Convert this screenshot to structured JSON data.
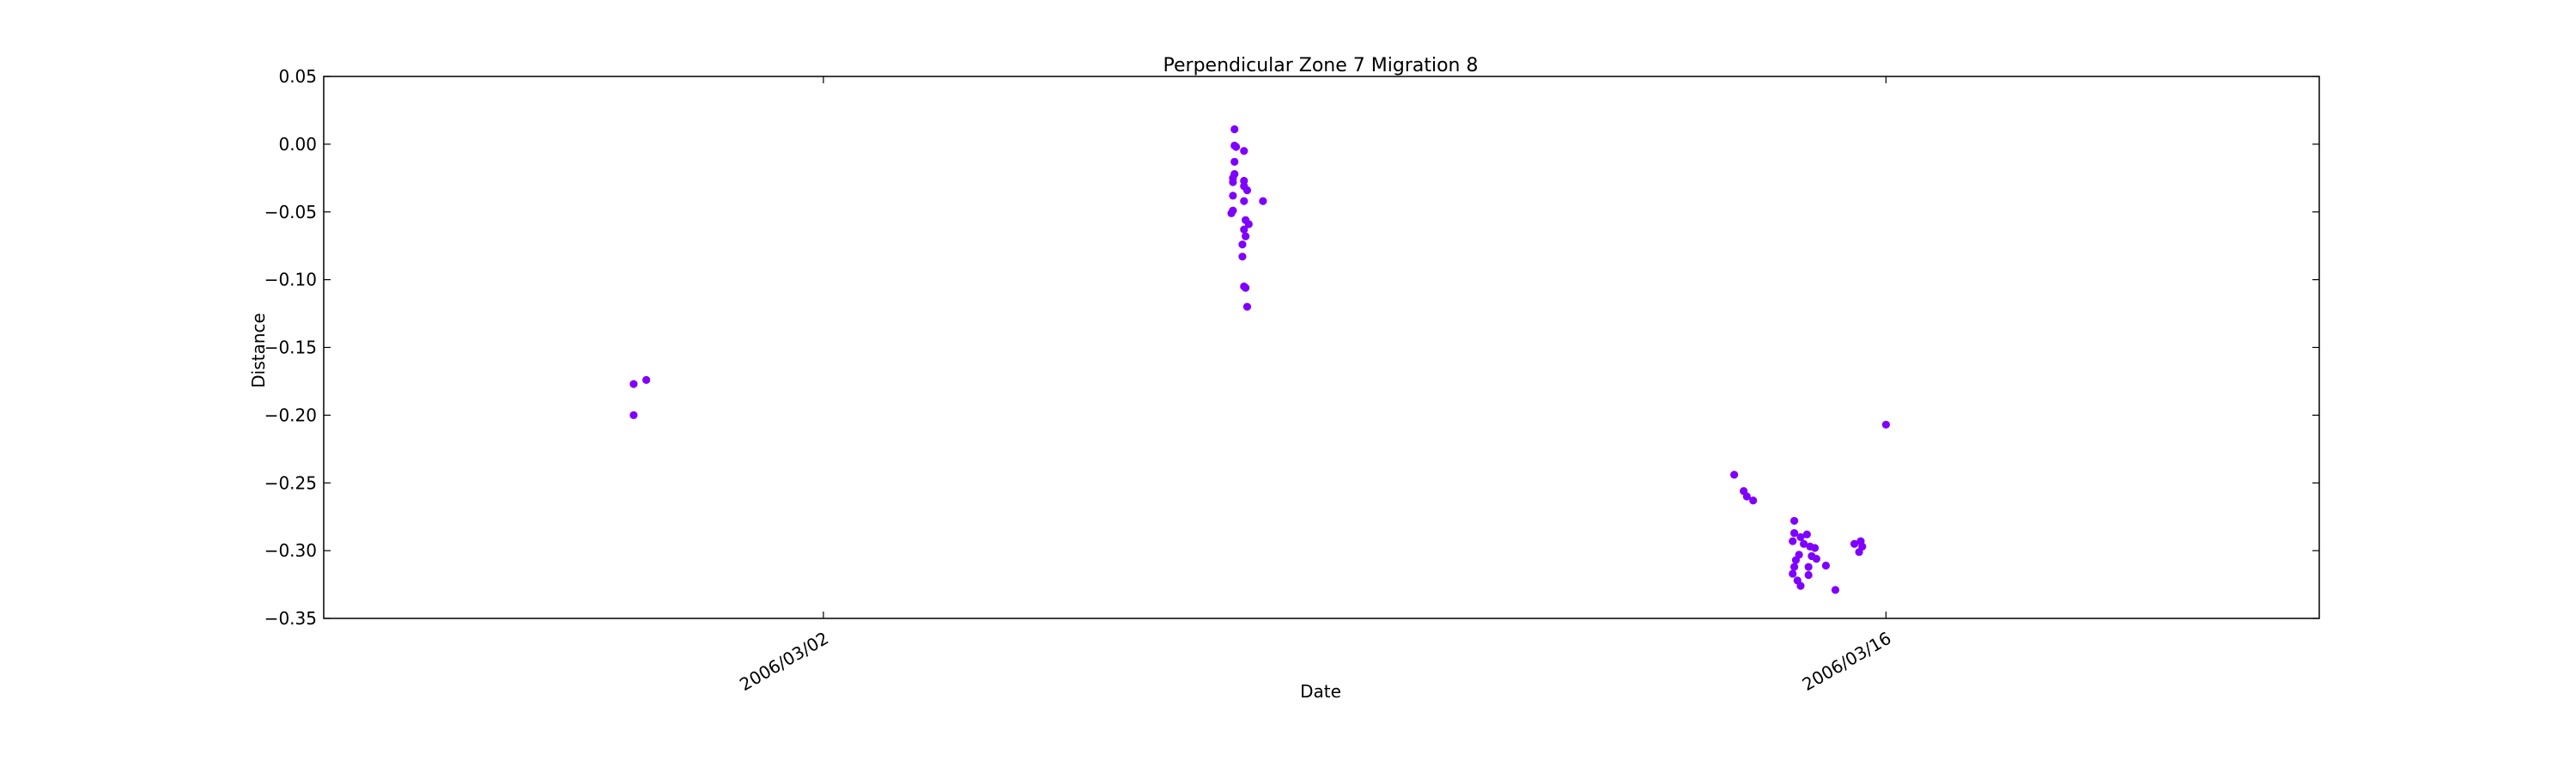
{
  "chart_data": {
    "type": "scatter",
    "title": "Perpendicular Zone 7 Migration 8",
    "xlabel": "Date",
    "ylabel": "Distance",
    "ylim": [
      -0.35,
      0.05
    ],
    "xlim": [
      "2006/02/23 10:00",
      "2006/03/21 17:00"
    ],
    "y_ticks": [
      0.05,
      0.0,
      -0.05,
      -0.1,
      -0.15,
      -0.2,
      -0.25,
      -0.3,
      -0.35
    ],
    "y_tick_labels": [
      "0.05",
      "0.00",
      "−0.05",
      "−0.10",
      "−0.15",
      "−0.20",
      "−0.25",
      "−0.30",
      "−0.35"
    ],
    "x_ticks": [
      "2006/03/02",
      "2006/03/16"
    ],
    "grid": false,
    "marker_color": "#7f00ff",
    "series": [
      {
        "points": [
          [
            "2006/02/27 12:00",
            -0.177
          ],
          [
            "2006/02/27 16:00",
            -0.174
          ],
          [
            "2006/02/27 12:00",
            -0.2
          ],
          [
            "2006/03/07 10:00",
            0.011
          ],
          [
            "2006/03/07 10:00",
            -0.001
          ],
          [
            "2006/03/07 10:30",
            -0.002
          ],
          [
            "2006/03/07 13:00",
            -0.005
          ],
          [
            "2006/03/07 10:00",
            -0.013
          ],
          [
            "2006/03/07 10:00",
            -0.022
          ],
          [
            "2006/03/07 09:30",
            -0.025
          ],
          [
            "2006/03/07 09:30",
            -0.028
          ],
          [
            "2006/03/07 13:00",
            -0.027
          ],
          [
            "2006/03/07 13:00",
            -0.031
          ],
          [
            "2006/03/07 14:00",
            -0.034
          ],
          [
            "2006/03/07 09:30",
            -0.038
          ],
          [
            "2006/03/07 13:00",
            -0.042
          ],
          [
            "2006/03/07 19:00",
            -0.042
          ],
          [
            "2006/03/07 09:30",
            -0.049
          ],
          [
            "2006/03/07 09:00",
            -0.051
          ],
          [
            "2006/03/07 13:30",
            -0.056
          ],
          [
            "2006/03/07 14:30",
            -0.059
          ],
          [
            "2006/03/07 13:00",
            -0.063
          ],
          [
            "2006/03/07 13:30",
            -0.068
          ],
          [
            "2006/03/07 12:30",
            -0.074
          ],
          [
            "2006/03/07 12:30",
            -0.083
          ],
          [
            "2006/03/07 13:00",
            -0.105
          ],
          [
            "2006/03/07 13:30",
            -0.106
          ],
          [
            "2006/03/07 14:00",
            -0.12
          ],
          [
            "2006/03/14 00:00",
            -0.244
          ],
          [
            "2006/03/14 03:00",
            -0.256
          ],
          [
            "2006/03/14 04:00",
            -0.26
          ],
          [
            "2006/03/14 06:00",
            -0.263
          ],
          [
            "2006/03/14 19:00",
            -0.278
          ],
          [
            "2006/03/14 19:00",
            -0.287
          ],
          [
            "2006/03/14 21:00",
            -0.29
          ],
          [
            "2006/03/14 23:00",
            -0.288
          ],
          [
            "2006/03/14 18:30",
            -0.293
          ],
          [
            "2006/03/14 22:00",
            -0.295
          ],
          [
            "2006/03/15 00:00",
            -0.297
          ],
          [
            "2006/03/15 01:30",
            -0.298
          ],
          [
            "2006/03/14 20:30",
            -0.303
          ],
          [
            "2006/03/14 19:30",
            -0.307
          ],
          [
            "2006/03/15 00:30",
            -0.304
          ],
          [
            "2006/03/15 02:00",
            -0.306
          ],
          [
            "2006/03/14 19:00",
            -0.312
          ],
          [
            "2006/03/14 23:30",
            -0.312
          ],
          [
            "2006/03/14 18:30",
            -0.317
          ],
          [
            "2006/03/14 23:30",
            -0.318
          ],
          [
            "2006/03/14 20:00",
            -0.322
          ],
          [
            "2006/03/15 05:00",
            -0.311
          ],
          [
            "2006/03/14 21:00",
            -0.326
          ],
          [
            "2006/03/15 08:00",
            -0.329
          ],
          [
            "2006/03/15 14:00",
            -0.295
          ],
          [
            "2006/03/15 16:00",
            -0.293
          ],
          [
            "2006/03/15 16:30",
            -0.297
          ],
          [
            "2006/03/15 15:30",
            -0.301
          ],
          [
            "2006/03/16 00:00",
            -0.207
          ]
        ]
      }
    ]
  }
}
